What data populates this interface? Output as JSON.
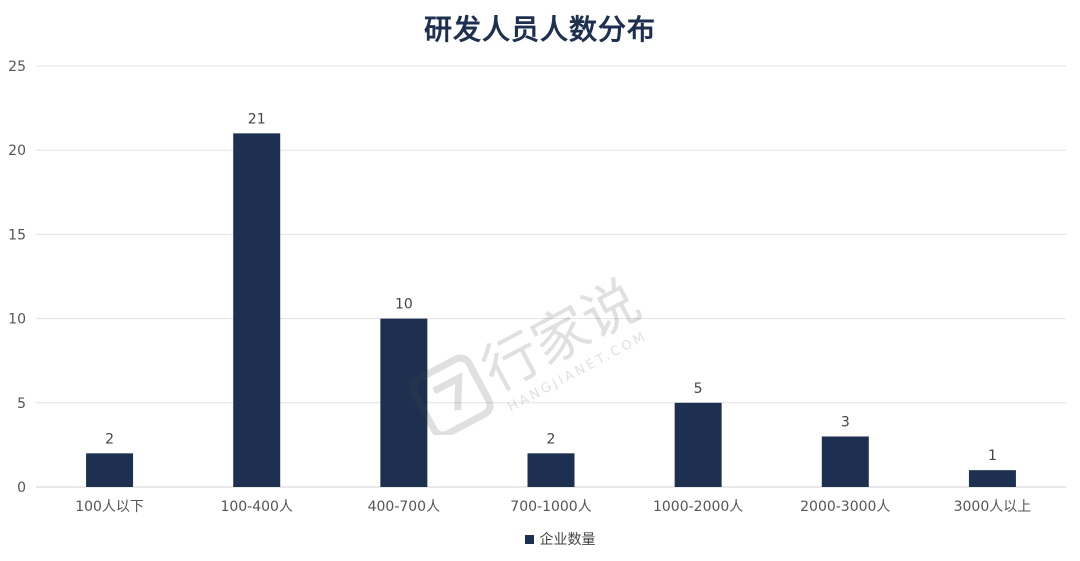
{
  "chart_data": {
    "type": "bar",
    "title": "研发人员人数分布",
    "categories": [
      "100人以下",
      "100-400人",
      "400-700人",
      "700-1000人",
      "1000-2000人",
      "2000-3000人",
      "3000人以上"
    ],
    "series": [
      {
        "name": "企业数量",
        "values": [
          2,
          21,
          10,
          2,
          5,
          3,
          1
        ]
      }
    ],
    "ylim": [
      0,
      25
    ],
    "yticks": [
      0,
      5,
      10,
      15,
      20,
      25
    ],
    "grid": true,
    "legend_position": "bottom",
    "colors": {
      "bar": "#1e3050",
      "grid": "#e3e3e3",
      "axis": "#d0d0d0",
      "text": "#555555"
    }
  },
  "watermark": {
    "text": "行家说",
    "subtext": "HANGJIANET.COM"
  }
}
